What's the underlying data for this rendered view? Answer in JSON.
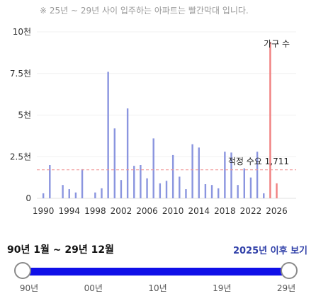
{
  "header": {
    "note": "※ 25년 ~ 29년 사이 입주하는 아파트는 빨간막대 입니다."
  },
  "chart_data": {
    "type": "bar",
    "x_start": 1989,
    "x_end": 2029,
    "xticks": [
      1990,
      1994,
      1998,
      2002,
      2006,
      2010,
      2014,
      2018,
      2022,
      2026
    ],
    "ylim": [
      0,
      10000
    ],
    "yticks": [
      {
        "value": 0,
        "label": "0"
      },
      {
        "value": 2500,
        "label": "2.5천"
      },
      {
        "value": 5000,
        "label": "5천"
      },
      {
        "value": 7500,
        "label": "7.5천"
      },
      {
        "value": 10000,
        "label": "10천"
      }
    ],
    "colors": {
      "normal": "#8a95df",
      "future": "#f08080",
      "reference": "#f09090"
    },
    "series": [
      {
        "points": [
          {
            "x": 1990,
            "y": 300
          },
          {
            "x": 1991,
            "y": 2000
          },
          {
            "x": 1992,
            "y": 0
          },
          {
            "x": 1993,
            "y": 800
          },
          {
            "x": 1994,
            "y": 550
          },
          {
            "x": 1995,
            "y": 350
          },
          {
            "x": 1996,
            "y": 1750
          },
          {
            "x": 1997,
            "y": 0
          },
          {
            "x": 1998,
            "y": 350
          },
          {
            "x": 1999,
            "y": 600
          },
          {
            "x": 2000,
            "y": 7600
          },
          {
            "x": 2001,
            "y": 4200
          },
          {
            "x": 2002,
            "y": 1100
          },
          {
            "x": 2003,
            "y": 5400
          },
          {
            "x": 2004,
            "y": 1950
          },
          {
            "x": 2005,
            "y": 2000
          },
          {
            "x": 2006,
            "y": 1200
          },
          {
            "x": 2007,
            "y": 3600
          },
          {
            "x": 2008,
            "y": 900
          },
          {
            "x": 2009,
            "y": 1050
          },
          {
            "x": 2010,
            "y": 2600
          },
          {
            "x": 2011,
            "y": 1300
          },
          {
            "x": 2012,
            "y": 550
          },
          {
            "x": 2013,
            "y": 3250
          },
          {
            "x": 2014,
            "y": 3050
          },
          {
            "x": 2015,
            "y": 850
          },
          {
            "x": 2016,
            "y": 800
          },
          {
            "x": 2017,
            "y": 600
          },
          {
            "x": 2018,
            "y": 2800
          },
          {
            "x": 2019,
            "y": 2750
          },
          {
            "x": 2020,
            "y": 800
          },
          {
            "x": 2021,
            "y": 1800
          },
          {
            "x": 2022,
            "y": 1250
          },
          {
            "x": 2023,
            "y": 2800
          },
          {
            "x": 2024,
            "y": 300
          },
          {
            "x": 2025,
            "y": 9400,
            "future": true
          },
          {
            "x": 2026,
            "y": 900,
            "future": true
          }
        ]
      }
    ],
    "annotations": {
      "households_label": "가구 수",
      "reference_label": "적정 수요 1,711",
      "reference_value": 1711
    }
  },
  "range": {
    "title": "90년 1월 ~ 29년 12월",
    "after_link": "2025년 이후 보기",
    "value_start": 0,
    "value_end": 1,
    "ticks": [
      {
        "label": "90년",
        "pos": 0.0
      },
      {
        "label": "00년",
        "pos": 0.25
      },
      {
        "label": "10년",
        "pos": 0.5
      },
      {
        "label": "19년",
        "pos": 0.75
      },
      {
        "label": "29년",
        "pos": 1.0
      }
    ]
  }
}
